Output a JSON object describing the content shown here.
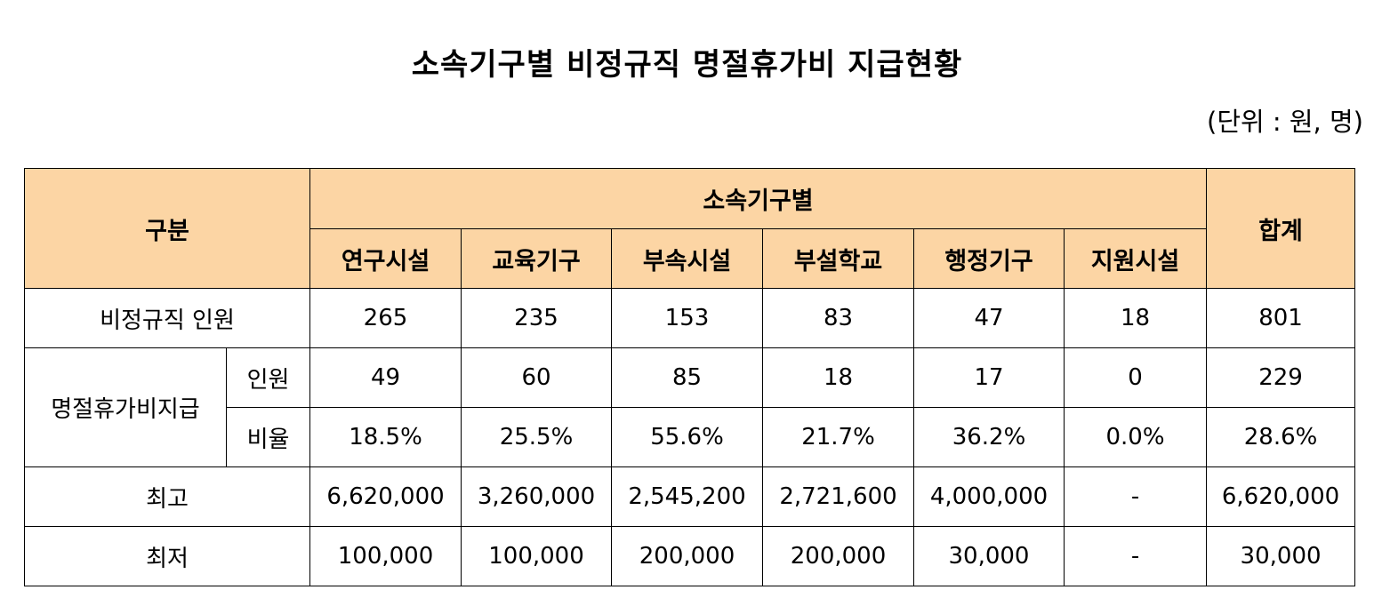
{
  "title": "소속기구별 비정규직 명절휴가비 지급현황",
  "unit": "(단위 : 원, 명)",
  "table": {
    "header_category": "구분",
    "header_group": "소속기구별",
    "header_total": "합계",
    "columns": [
      "연구시설",
      "교육기구",
      "부속시설",
      "부설학교",
      "행정기구",
      "지원시설"
    ],
    "rows": {
      "staff": {
        "label": "비정규직 인원",
        "values": [
          "265",
          "235",
          "153",
          "83",
          "47",
          "18"
        ],
        "total": "801"
      },
      "bonus_group_label": "명절휴가비지급",
      "bonus_count": {
        "label": "인원",
        "values": [
          "49",
          "60",
          "85",
          "18",
          "17",
          "0"
        ],
        "total": "229"
      },
      "bonus_ratio": {
        "label": "비율",
        "values": [
          "18.5%",
          "25.5%",
          "55.6%",
          "21.7%",
          "36.2%",
          "0.0%"
        ],
        "total": "28.6%"
      },
      "max": {
        "label": "최고",
        "values": [
          "6,620,000",
          "3,260,000",
          "2,545,200",
          "2,721,600",
          "4,000,000",
          "-"
        ],
        "total": "6,620,000"
      },
      "min": {
        "label": "최저",
        "values": [
          "100,000",
          "100,000",
          "200,000",
          "200,000",
          "30,000",
          "-"
        ],
        "total": "30,000"
      }
    }
  },
  "colors": {
    "header_background": "#fcd5a4",
    "border": "#000000"
  }
}
